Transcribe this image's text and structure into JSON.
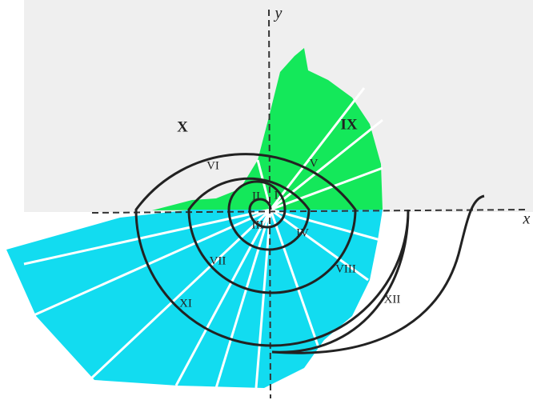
{
  "axes": {
    "x": "x",
    "y": "y"
  },
  "regions": [
    "I",
    "II",
    "III",
    "IV",
    "V",
    "VI",
    "VII",
    "VIII",
    "IX",
    "X",
    "XI",
    "XII"
  ]
}
